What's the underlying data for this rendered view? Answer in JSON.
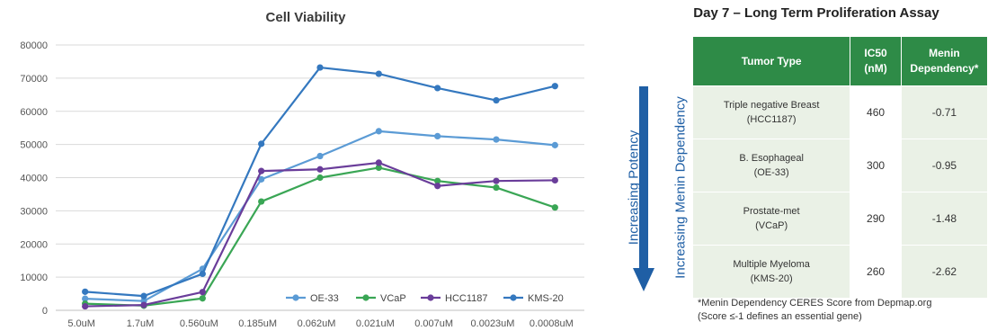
{
  "chart_data": {
    "type": "line",
    "title": "Cell Viability",
    "categories": [
      "5.0uM",
      "1.7uM",
      "0.560uM",
      "0.185uM",
      "0.062uM",
      "0.021uM",
      "0.007uM",
      "0.0023uM",
      "0.0008uM"
    ],
    "ylim": [
      0,
      80000
    ],
    "yticks": [
      0,
      10000,
      20000,
      30000,
      40000,
      50000,
      60000,
      70000,
      80000
    ],
    "grid": true,
    "legend_position": "bottom-right",
    "series": [
      {
        "name": "OE-33",
        "color": "#5b9bd5",
        "values": [
          3500,
          2800,
          12500,
          39500,
          46500,
          54000,
          52500,
          51500,
          49800
        ]
      },
      {
        "name": "VCaP",
        "color": "#3aa655",
        "values": [
          2000,
          1400,
          3600,
          32800,
          40000,
          43000,
          39000,
          37000,
          31000
        ]
      },
      {
        "name": "HCC1187",
        "color": "#6a3d9a",
        "values": [
          1200,
          1600,
          5500,
          42000,
          42500,
          44500,
          37500,
          39000,
          39200
        ]
      },
      {
        "name": "KMS-20",
        "color": "#3478bf",
        "values": [
          5600,
          4300,
          11000,
          50200,
          73200,
          71300,
          67000,
          63300,
          67600
        ]
      }
    ]
  },
  "table": {
    "title": "Day 7 – Long Term Proliferation Assay",
    "headers": {
      "tumor_type": "Tumor Type",
      "ic50_line1": "IC50",
      "ic50_line2": "(nM)",
      "menin_line1": "Menin",
      "menin_line2": "Dependency*"
    },
    "rows": [
      {
        "tumor_line1": "Triple negative Breast",
        "tumor_line2": "(HCC1187)",
        "ic50": "460",
        "menin": "-0.71"
      },
      {
        "tumor_line1": "B. Esophageal",
        "tumor_line2": "(OE-33)",
        "ic50": "300",
        "menin": "-0.95"
      },
      {
        "tumor_line1": "Prostate-met",
        "tumor_line2": "(VCaP)",
        "ic50": "290",
        "menin": "-1.48"
      },
      {
        "tumor_line1": "Multiple Myeloma",
        "tumor_line2": "(KMS-20)",
        "ic50": "260",
        "menin": "-2.62"
      }
    ],
    "arrow_label_potency": "Increasing Potency",
    "arrow_label_menin": "Increasing Menin Dependency",
    "footnote_line1": "*Menin Dependency CERES Score from Depmap.org",
    "footnote_line2": "(Score ≤-1 defines an essential gene)"
  }
}
